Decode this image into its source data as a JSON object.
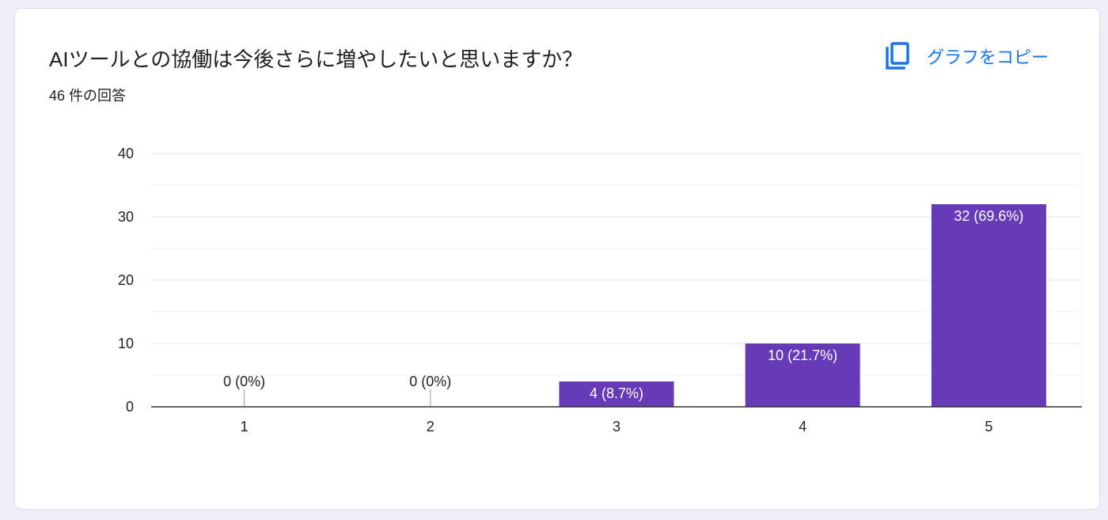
{
  "card": {
    "title": "AIツールとの協働は今後さらに増やしたいと思いますか？",
    "response_count": "46 件の回答",
    "copy_label": "グラフをコピー",
    "copy_icon": "copy-icon"
  },
  "colors": {
    "bar": "#673ab7",
    "accent": "#1a73e8",
    "grid": "#e5e5e5",
    "axis": "#333333"
  },
  "chart_data": {
    "type": "bar",
    "categories": [
      "1",
      "2",
      "3",
      "4",
      "5"
    ],
    "values": [
      0,
      0,
      4,
      10,
      32
    ],
    "data_labels": [
      "0 (0%)",
      "0 (0%)",
      "4 (8.7%)",
      "10 (21.7%)",
      "32 (69.6%)"
    ],
    "ylim": [
      0,
      40
    ],
    "yticks": [
      0,
      10,
      20,
      30,
      40
    ],
    "minor_gridlines": true,
    "legend": "none",
    "xlabel": "",
    "ylabel": ""
  }
}
